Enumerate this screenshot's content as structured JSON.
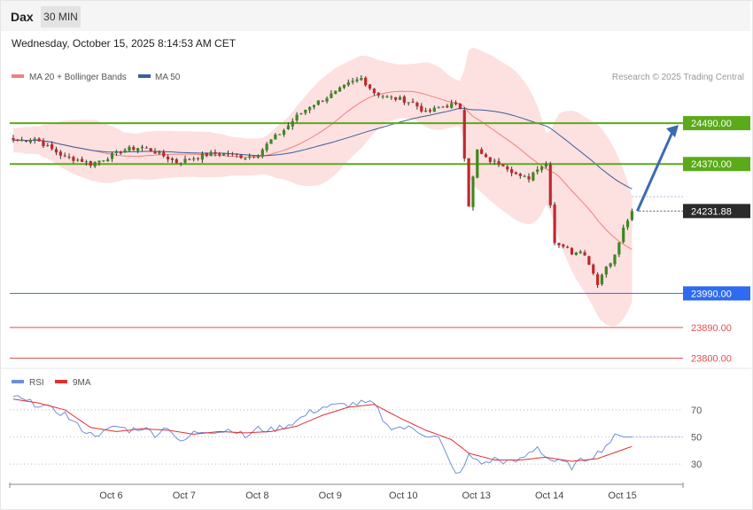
{
  "header": {
    "symbol": "Dax",
    "timeframe": "30 MIN",
    "datetime": "Wednesday, October 15, 2025 8:14:53 AM CET"
  },
  "legend": {
    "ma20": "MA 20 + Bollinger Bands",
    "ma50": "MA 50",
    "copyright": "Research © 2025 Trading Central"
  },
  "rsi_legend": {
    "rsi": "RSI",
    "ma9": "9MA"
  },
  "colors": {
    "up": "#3c8a1e",
    "down": "#c0282b",
    "ma20": "#f08080",
    "ma50": "#3a5f9a",
    "band_fill": "#fde0e0",
    "resistance": "#5aaa1a",
    "support_blue": "#2e6bf0",
    "support_red": "#e05050",
    "rsi": "#6e8ee0",
    "rsi_ma": "#e03030",
    "arrow": "#3a6cb0"
  },
  "chart_data": [
    {
      "type": "candlestick",
      "x_labels": [
        "Oct 6",
        "Oct 7",
        "Oct 8",
        "Oct 9",
        "Oct 10",
        "Oct 13",
        "Oct 14",
        "Oct 15"
      ],
      "x_label_index": [
        17,
        34,
        51,
        68,
        85,
        102,
        119,
        136
      ],
      "ylim": [
        23770,
        24680
      ],
      "anchors": [
        [
          0,
          24440
        ],
        [
          2,
          24440
        ],
        [
          5,
          24445
        ],
        [
          8,
          24420
        ],
        [
          12,
          24390
        ],
        [
          16,
          24380
        ],
        [
          18,
          24370
        ],
        [
          22,
          24390
        ],
        [
          26,
          24412
        ],
        [
          30,
          24420
        ],
        [
          34,
          24400
        ],
        [
          38,
          24375
        ],
        [
          42,
          24388
        ],
        [
          46,
          24400
        ],
        [
          50,
          24400
        ],
        [
          54,
          24390
        ],
        [
          57,
          24400
        ],
        [
          60,
          24440
        ],
        [
          63,
          24470
        ],
        [
          66,
          24510
        ],
        [
          69,
          24540
        ],
        [
          72,
          24560
        ],
        [
          75,
          24580
        ],
        [
          78,
          24605
        ],
        [
          81,
          24622
        ],
        [
          84,
          24580
        ],
        [
          87,
          24566
        ],
        [
          90,
          24560
        ],
        [
          93,
          24550
        ],
        [
          96,
          24520
        ],
        [
          99,
          24535
        ],
        [
          102,
          24545
        ],
        [
          104,
          24535
        ],
        [
          106,
          24250
        ],
        [
          108,
          24410
        ],
        [
          110,
          24385
        ],
        [
          112,
          24375
        ],
        [
          114,
          24370
        ],
        [
          116,
          24350
        ],
        [
          118,
          24330
        ],
        [
          120,
          24330
        ],
        [
          122,
          24360
        ],
        [
          124,
          24370
        ],
        [
          126,
          24140
        ],
        [
          128,
          24130
        ],
        [
          130,
          24110
        ],
        [
          132,
          24120
        ],
        [
          134,
          24080
        ],
        [
          136,
          24020
        ],
        [
          138,
          24070
        ],
        [
          140,
          24100
        ],
        [
          142,
          24180
        ],
        [
          144,
          24231.88
        ]
      ],
      "price_levels": [
        {
          "label": "24490.00",
          "value": 24490,
          "style": "resistance"
        },
        {
          "label": "24370.00",
          "value": 24370,
          "style": "resistance"
        },
        {
          "label": "24231.88",
          "value": 24231.88,
          "style": "current"
        },
        {
          "label": "23990.00",
          "value": 23990,
          "style": "support_blue"
        },
        {
          "label": "23890.00",
          "value": 23890,
          "style": "support_red"
        },
        {
          "label": "23800.00",
          "value": 23800,
          "style": "support_red"
        }
      ],
      "projection": {
        "from": 24231.88,
        "to": 24490
      },
      "ma20_period": 20,
      "ma50_period": 50
    },
    {
      "type": "line",
      "title": "RSI",
      "ylim": [
        15,
        85
      ],
      "y_ticks": [
        30,
        50,
        70
      ],
      "series": [
        {
          "name": "RSI",
          "anchors": [
            [
              0,
              80
            ],
            [
              3,
              76
            ],
            [
              6,
              74
            ],
            [
              9,
              70
            ],
            [
              12,
              67
            ],
            [
              15,
              58
            ],
            [
              18,
              52
            ],
            [
              21,
              53
            ],
            [
              24,
              58
            ],
            [
              27,
              55
            ],
            [
              30,
              57
            ],
            [
              33,
              52
            ],
            [
              36,
              58
            ],
            [
              39,
              45
            ],
            [
              42,
              53
            ],
            [
              45,
              55
            ],
            [
              48,
              54
            ],
            [
              51,
              56
            ],
            [
              54,
              50
            ],
            [
              57,
              56
            ],
            [
              60,
              55
            ],
            [
              63,
              58
            ],
            [
              66,
              62
            ],
            [
              69,
              68
            ],
            [
              72,
              72
            ],
            [
              75,
              73
            ],
            [
              78,
              74
            ],
            [
              81,
              75
            ],
            [
              84,
              74
            ],
            [
              87,
              58
            ],
            [
              90,
              57
            ],
            [
              93,
              56
            ],
            [
              96,
              52
            ],
            [
              99,
              49
            ],
            [
              102,
              28
            ],
            [
              104,
              22
            ],
            [
              106,
              36
            ],
            [
              108,
              33
            ],
            [
              110,
              30
            ],
            [
              112,
              34
            ],
            [
              114,
              32
            ],
            [
              116,
              31
            ],
            [
              118,
              33
            ],
            [
              120,
              38
            ],
            [
              122,
              43
            ],
            [
              124,
              35
            ],
            [
              126,
              32
            ],
            [
              128,
              31
            ],
            [
              130,
              28
            ],
            [
              132,
              32
            ],
            [
              134,
              35
            ],
            [
              136,
              38
            ],
            [
              138,
              44
            ],
            [
              140,
              50
            ],
            [
              142,
              50
            ],
            [
              144,
              50
            ]
          ]
        },
        {
          "name": "9MA",
          "anchors": [
            [
              0,
              78
            ],
            [
              6,
              75
            ],
            [
              12,
              70
            ],
            [
              18,
              57
            ],
            [
              24,
              54
            ],
            [
              30,
              56
            ],
            [
              36,
              55
            ],
            [
              42,
              52
            ],
            [
              48,
              54
            ],
            [
              54,
              53
            ],
            [
              60,
              54
            ],
            [
              66,
              58
            ],
            [
              72,
              66
            ],
            [
              78,
              72
            ],
            [
              84,
              74
            ],
            [
              90,
              64
            ],
            [
              96,
              55
            ],
            [
              102,
              48
            ],
            [
              106,
              38
            ],
            [
              112,
              33
            ],
            [
              118,
              33
            ],
            [
              124,
              35
            ],
            [
              130,
              32
            ],
            [
              136,
              34
            ],
            [
              144,
              43
            ]
          ]
        }
      ]
    }
  ]
}
